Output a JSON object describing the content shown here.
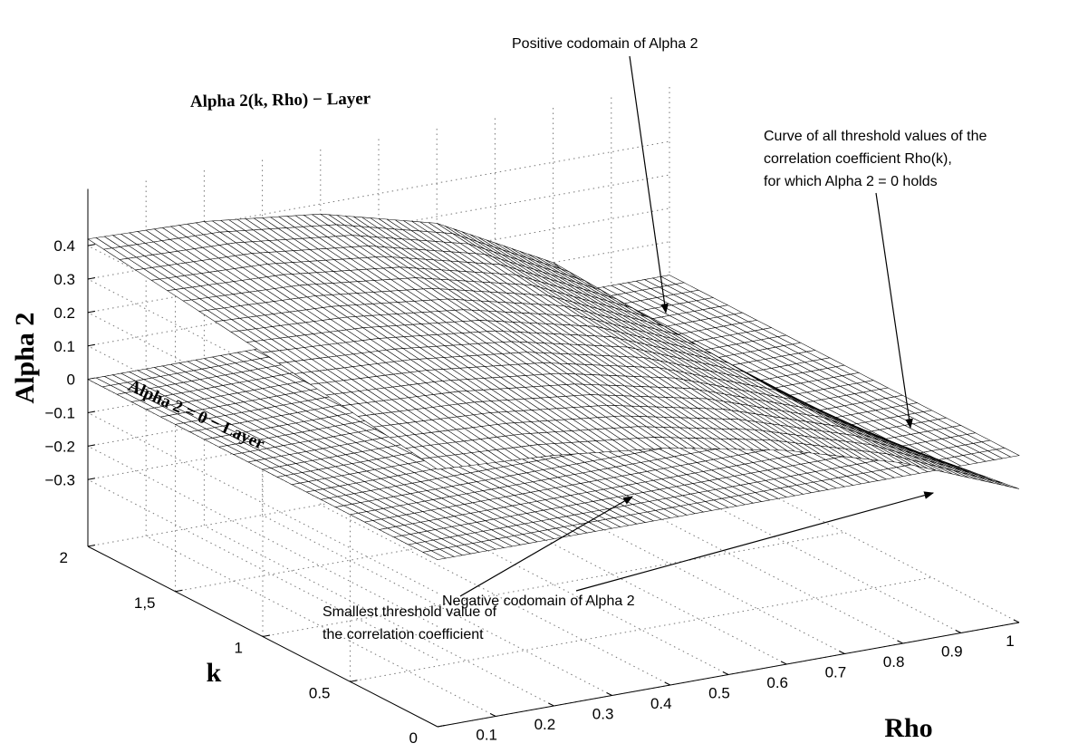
{
  "chart_data": {
    "type": "surface",
    "xlabel": "Rho",
    "ylabel": "k",
    "zlabel": "Alpha 2",
    "xlim": [
      0,
      1
    ],
    "ylim": [
      0,
      2
    ],
    "zlim": [
      -0.35,
      0.45
    ],
    "x_ticks": [
      "0.1",
      "0.2",
      "0.3",
      "0.4",
      "0.5",
      "0.6",
      "0.7",
      "0.8",
      "0.9",
      "1"
    ],
    "y_ticks": [
      "0",
      "0.5",
      "1",
      "1,5",
      "2"
    ],
    "z_ticks": [
      "−0.3",
      "−0.2",
      "−0.1",
      "0",
      "0.1",
      "0.2",
      "0.3",
      "0.4"
    ],
    "grid": true,
    "surfaces": [
      {
        "name": "Alpha 2(k, Rho) − Layer",
        "rho": [
          0.0,
          0.2,
          0.4,
          0.6,
          0.8,
          1.0
        ],
        "k": [
          0.0,
          1.0,
          2.0
        ],
        "alpha2": [
          [
            0.27,
            0.25,
            0.21,
            0.14,
            0.04,
            -0.1
          ],
          [
            0.35,
            0.33,
            0.29,
            0.21,
            0.07,
            -0.18
          ],
          [
            0.42,
            0.41,
            0.37,
            0.28,
            0.1,
            -0.24
          ]
        ]
      },
      {
        "name": "Alpha 2 = 0 − Layer",
        "constant": 0
      }
    ],
    "annotations": [
      "Positive codomain of Alpha 2",
      "Curve of all threshold values of the correlation coefficient Rho(k), for which Alpha 2 = 0 holds",
      "Smallest threshold value of the correlation coefficient",
      "Negative codomain of Alpha 2"
    ]
  },
  "labels": {
    "surface_label": "Alpha 2(k, Rho) − Layer",
    "plane_label": "Alpha 2 = 0 − Layer",
    "ann_positive": "Positive codomain of Alpha 2",
    "ann_curve_1": "Curve of all threshold values of the",
    "ann_curve_2": "correlation coefficient Rho(k),",
    "ann_curve_3": "for which Alpha 2 = 0 holds",
    "ann_smallest_1": "Smallest threshold value of",
    "ann_smallest_2": "the correlation coefficient",
    "ann_negative": "Negative codomain of Alpha 2"
  }
}
